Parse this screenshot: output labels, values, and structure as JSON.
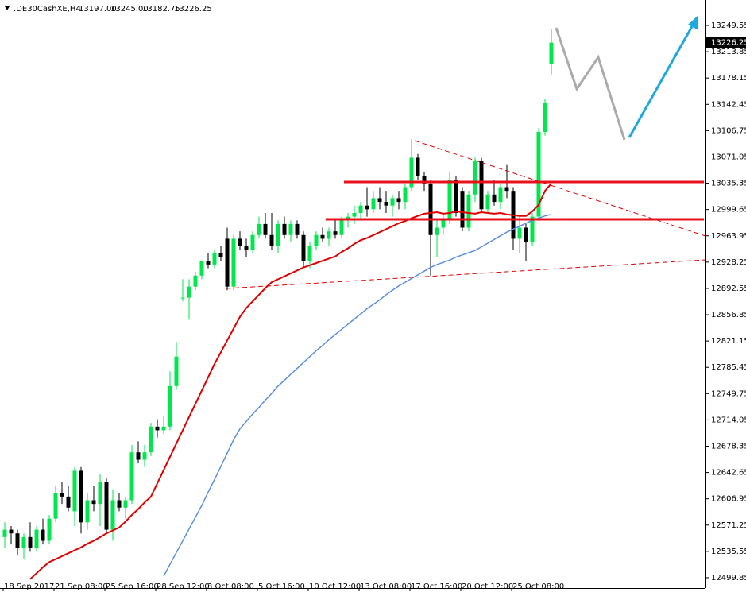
{
  "header": {
    "symbol": ".DE30CashXE,H4",
    "ohlc_labels": [
      "13197.00",
      "13245.00",
      "13182.75",
      "13226.25"
    ]
  },
  "chart_data": {
    "type": "candlestick",
    "categories": [
      "18 Sep 2017",
      null,
      null,
      null,
      null,
      null,
      null,
      null,
      "21 Sep 08:00",
      null,
      null,
      null,
      null,
      null,
      null,
      null,
      "25 Sep 16:00",
      null,
      null,
      null,
      null,
      null,
      null,
      null,
      "28 Sep 12:00",
      null,
      null,
      null,
      null,
      null,
      null,
      null,
      "3 Oct 08:00",
      null,
      null,
      null,
      null,
      null,
      null,
      null,
      "5 Oct 16:00",
      null,
      null,
      null,
      null,
      null,
      null,
      null,
      "10 Oct 12:00",
      null,
      null,
      null,
      null,
      null,
      null,
      null,
      "13 Oct 08:00",
      null,
      null,
      null,
      null,
      null,
      null,
      null,
      "17 Oct 16:00",
      null,
      null,
      null,
      null,
      null,
      null,
      null,
      "20 Oct 12:00",
      null,
      null,
      null,
      null,
      null,
      null,
      null,
      "25 Oct 08:00",
      null,
      null,
      null,
      null,
      null,
      null
    ],
    "open": [
      12555,
      12565,
      12560,
      12540,
      12555,
      12540,
      12565,
      12550,
      12580,
      12615,
      12610,
      12590,
      12645,
      12575,
      12605,
      12600,
      12630,
      12565,
      12605,
      12595,
      12605,
      12670,
      12660,
      12670,
      12705,
      12700,
      12705,
      12760,
      12880,
      12880,
      12895,
      12910,
      12930,
      12925,
      12940,
      12960,
      12895,
      12960,
      12950,
      12945,
      12965,
      12980,
      12965,
      12950,
      12980,
      12965,
      12980,
      12965,
      12930,
      12950,
      12965,
      12960,
      12970,
      12965,
      12985,
      12990,
      12995,
      13005,
      13000,
      13015,
      13010,
      13005,
      13015,
      13010,
      13030,
      13070,
      13045,
      13035,
      12965,
      12975,
      12985,
      13040,
      13025,
      12975,
      13020,
      13065,
      13000,
      13020,
      13010,
      13030,
      13025,
      12960,
      12975,
      12955,
      12990,
      13105,
      13197
    ],
    "high": [
      12575,
      12570,
      12565,
      12560,
      12575,
      12570,
      12580,
      12585,
      12625,
      12630,
      12625,
      12650,
      12650,
      12615,
      12625,
      12640,
      12635,
      12620,
      12615,
      12610,
      12680,
      12685,
      12680,
      12710,
      12715,
      12720,
      12780,
      12820,
      12905,
      12905,
      12915,
      12930,
      12940,
      12945,
      12950,
      12975,
      12965,
      12970,
      12960,
      12970,
      12990,
      12995,
      12995,
      12985,
      12990,
      12985,
      12985,
      12970,
      12955,
      12970,
      12975,
      12975,
      12985,
      12990,
      12995,
      13005,
      13010,
      13030,
      13025,
      13030,
      13025,
      13020,
      13025,
      13035,
      13095,
      13075,
      13050,
      13040,
      12985,
      12995,
      13050,
      13045,
      13030,
      13025,
      13070,
      13070,
      13025,
      13040,
      13035,
      13060,
      13030,
      12990,
      12980,
      12995,
      13110,
      13150,
      13245
    ],
    "low": [
      12540,
      12545,
      12530,
      12525,
      12535,
      12535,
      12545,
      12545,
      12575,
      12600,
      12590,
      12570,
      12560,
      12565,
      12590,
      12570,
      12560,
      12550,
      12590,
      12580,
      12600,
      12655,
      12650,
      12665,
      12690,
      12695,
      12700,
      12755,
      12875,
      12850,
      12890,
      12905,
      12920,
      12920,
      12930,
      12890,
      12890,
      12945,
      12935,
      12940,
      12960,
      12960,
      12945,
      12940,
      12960,
      12955,
      12960,
      12920,
      12920,
      12945,
      12955,
      12950,
      12960,
      12960,
      12975,
      12980,
      12985,
      12990,
      12995,
      13000,
      12995,
      12990,
      13000,
      13000,
      13025,
      13040,
      13025,
      12910,
      12935,
      12965,
      12980,
      12990,
      12970,
      12970,
      13010,
      12995,
      12995,
      13005,
      13000,
      13015,
      12945,
      12940,
      12930,
      12950,
      12985,
      13100,
      13182.75
    ],
    "close": [
      12565,
      12560,
      12540,
      12555,
      12540,
      12565,
      12550,
      12580,
      12615,
      12610,
      12595,
      12645,
      12575,
      12605,
      12600,
      12630,
      12565,
      12605,
      12595,
      12605,
      12670,
      12660,
      12670,
      12705,
      12700,
      12705,
      12760,
      12800,
      12880,
      12895,
      12910,
      12930,
      12925,
      12940,
      12935,
      12895,
      12960,
      12950,
      12945,
      12965,
      12980,
      12965,
      12950,
      12980,
      12965,
      12980,
      12965,
      12930,
      12950,
      12965,
      12960,
      12970,
      12965,
      12985,
      12990,
      12995,
      13005,
      13000,
      13015,
      13010,
      13005,
      13015,
      13010,
      13030,
      13070,
      13045,
      13035,
      12965,
      12975,
      12985,
      13040,
      12995,
      12975,
      13020,
      13065,
      13000,
      13020,
      13010,
      13030,
      13025,
      12960,
      12975,
      12955,
      12990,
      13105,
      13145,
      13226.25
    ],
    "up_color": "#00e64d",
    "down_color": "#000000",
    "series": [
      {
        "color": "#e00000",
        "values": [
          null,
          null,
          null,
          null,
          12498,
          12506,
          12514,
          12521,
          12525,
          12529,
          12533,
          12537,
          12541,
          12546,
          12550,
          12555,
          12560,
          12564,
          12568,
          12576,
          12585,
          12593,
          12602,
          12610,
          12628,
          12646,
          12664,
          12682,
          12700,
          12718,
          12736,
          12754,
          12772,
          12790,
          12806,
          12822,
          12838,
          12854,
          12866,
          12875,
          12884,
          12893,
          12901,
          12905,
          12909,
          12913,
          12917,
          12921,
          12924,
          12927,
          12930,
          12933,
          12936,
          12942,
          12947,
          12953,
          12958,
          12961,
          12965,
          12969,
          12973,
          12977,
          12981,
          12984,
          12988,
          12991,
          12994,
          12995,
          12996,
          12994,
          12995,
          12997,
          12996,
          12995,
          12994,
          12996,
          12995,
          12994,
          12995,
          12993,
          12992,
          12991,
          12991,
          12997,
          13006,
          13025,
          13035
        ]
      },
      {
        "color": "#5b8fe0",
        "values": [
          null,
          null,
          null,
          null,
          null,
          null,
          null,
          null,
          null,
          null,
          null,
          null,
          null,
          null,
          null,
          null,
          null,
          null,
          null,
          null,
          null,
          null,
          null,
          null,
          null,
          12502,
          12518,
          12534,
          12550,
          12566,
          12582,
          12598,
          12616,
          12633,
          12651,
          12669,
          12687,
          12702,
          12712,
          12722,
          12731,
          12741,
          12750,
          12760,
          12768,
          12776,
          12784,
          12792,
          12800,
          12808,
          12815,
          12823,
          12830,
          12837,
          12844,
          12851,
          12858,
          12865,
          12871,
          12877,
          12884,
          12890,
          12896,
          12901,
          12906,
          12911,
          12916,
          12921,
          12925,
          12928,
          12931,
          12935,
          12938,
          12941,
          12944,
          12949,
          12954,
          12959,
          12964,
          12969,
          12973,
          12977,
          12981,
          12985,
          12988,
          12991,
          12993
        ]
      }
    ],
    "ylim": [
      12485.8,
      13284.07
    ],
    "yticks": [
      13249.55,
      13213.85,
      13178.15,
      13142.45,
      13106.75,
      13071.05,
      13035.35,
      12999.65,
      12963.95,
      12928.25,
      12892.55,
      12856.85,
      12821.15,
      12785.45,
      12749.75,
      12714.05,
      12678.35,
      12642.65,
      12606.95,
      12571.25,
      12535.55,
      12499.85
    ]
  }
}
